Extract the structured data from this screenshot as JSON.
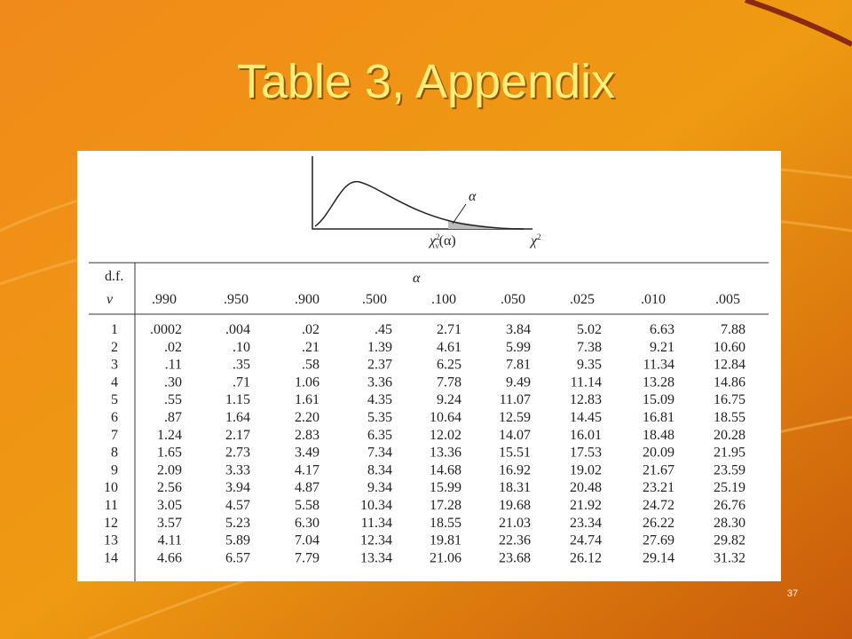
{
  "slide": {
    "title": "Table 3, Appendix",
    "page_number": "37"
  },
  "figure": {
    "alpha_label": "α",
    "critical_label": {
      "base": "χ",
      "sup": "2",
      "sub": "ν",
      "arg": "(α)"
    },
    "axis_label": {
      "base": "χ",
      "sup": "2"
    }
  },
  "table": {
    "df_header": "d.f.",
    "nu_header": "ν",
    "alpha_header": "α",
    "columns": [
      ".990",
      ".950",
      ".900",
      ".500",
      ".100",
      ".050",
      ".025",
      ".010",
      ".005"
    ],
    "rows": [
      [
        "1",
        ".0002",
        ".004",
        ".02",
        ".45",
        "2.71",
        "3.84",
        "5.02",
        "6.63",
        "7.88"
      ],
      [
        "2",
        ".02",
        ".10",
        ".21",
        "1.39",
        "4.61",
        "5.99",
        "7.38",
        "9.21",
        "10.60"
      ],
      [
        "3",
        ".11",
        ".35",
        ".58",
        "2.37",
        "6.25",
        "7.81",
        "9.35",
        "11.34",
        "12.84"
      ],
      [
        "4",
        ".30",
        ".71",
        "1.06",
        "3.36",
        "7.78",
        "9.49",
        "11.14",
        "13.28",
        "14.86"
      ],
      [
        "5",
        ".55",
        "1.15",
        "1.61",
        "4.35",
        "9.24",
        "11.07",
        "12.83",
        "15.09",
        "16.75"
      ],
      [
        "6",
        ".87",
        "1.64",
        "2.20",
        "5.35",
        "10.64",
        "12.59",
        "14.45",
        "16.81",
        "18.55"
      ],
      [
        "7",
        "1.24",
        "2.17",
        "2.83",
        "6.35",
        "12.02",
        "14.07",
        "16.01",
        "18.48",
        "20.28"
      ],
      [
        "8",
        "1.65",
        "2.73",
        "3.49",
        "7.34",
        "13.36",
        "15.51",
        "17.53",
        "20.09",
        "21.95"
      ],
      [
        "9",
        "2.09",
        "3.33",
        "4.17",
        "8.34",
        "14.68",
        "16.92",
        "19.02",
        "21.67",
        "23.59"
      ],
      [
        "10",
        "2.56",
        "3.94",
        "4.87",
        "9.34",
        "15.99",
        "18.31",
        "20.48",
        "23.21",
        "25.19"
      ],
      [
        "11",
        "3.05",
        "4.57",
        "5.58",
        "10.34",
        "17.28",
        "19.68",
        "21.92",
        "24.72",
        "26.76"
      ],
      [
        "12",
        "3.57",
        "5.23",
        "6.30",
        "11.34",
        "18.55",
        "21.03",
        "23.34",
        "26.22",
        "28.30"
      ],
      [
        "13",
        "4.11",
        "5.89",
        "7.04",
        "12.34",
        "19.81",
        "22.36",
        "24.74",
        "27.69",
        "29.82"
      ],
      [
        "14",
        "4.66",
        "6.57",
        "7.79",
        "13.34",
        "21.06",
        "23.68",
        "26.12",
        "29.14",
        "31.32"
      ]
    ]
  }
}
